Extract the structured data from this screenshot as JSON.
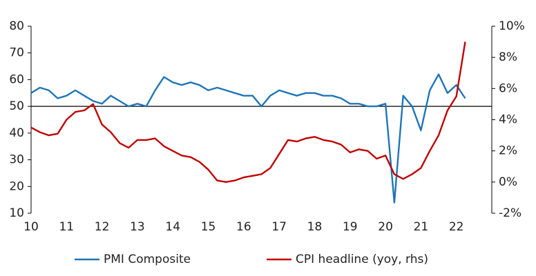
{
  "chart_data": {
    "type": "line",
    "x": [
      10,
      10.25,
      10.5,
      10.75,
      11,
      11.25,
      11.5,
      11.75,
      12,
      12.25,
      12.5,
      12.75,
      13,
      13.25,
      13.5,
      13.75,
      14,
      14.25,
      14.5,
      14.75,
      15,
      15.25,
      15.5,
      15.75,
      16,
      16.25,
      16.5,
      16.75,
      17,
      17.25,
      17.5,
      17.75,
      18,
      18.25,
      18.5,
      18.75,
      19,
      19.25,
      19.5,
      19.75,
      20,
      20.25,
      20.5,
      20.75,
      21,
      21.25,
      21.5,
      21.75,
      22,
      22.25
    ],
    "series": [
      {
        "name": "PMI Composite",
        "color": "#1f74b8",
        "values": [
          55,
          57,
          56,
          53,
          54,
          56,
          54,
          52,
          51,
          54,
          52,
          50,
          51,
          50,
          56,
          61,
          59,
          58,
          59,
          58,
          56,
          57,
          56,
          55,
          54,
          54,
          50,
          54,
          56,
          55,
          54,
          55,
          55,
          54,
          54,
          53,
          51,
          51,
          50,
          50,
          51,
          14,
          54,
          50,
          41,
          56,
          62,
          55,
          58,
          53
        ]
      },
      {
        "name": "CPI headline (yoy, rhs)",
        "color": "#c00000",
        "axis": "y2",
        "values": [
          3.5,
          3.2,
          3.0,
          3.1,
          4.0,
          4.5,
          4.6,
          5.0,
          3.7,
          3.2,
          2.5,
          2.2,
          2.7,
          2.7,
          2.8,
          2.3,
          2.0,
          1.7,
          1.6,
          1.3,
          0.8,
          0.1,
          0.0,
          0.1,
          0.3,
          0.4,
          0.5,
          0.9,
          1.8,
          2.7,
          2.6,
          2.8,
          2.9,
          2.7,
          2.6,
          2.4,
          1.9,
          2.1,
          2.0,
          1.5,
          1.7,
          0.5,
          0.2,
          0.5,
          0.9,
          2.0,
          3.0,
          4.6,
          5.5,
          9.0
        ]
      }
    ],
    "xlim": [
      10,
      23
    ],
    "xticks": [
      10,
      11,
      12,
      13,
      14,
      15,
      16,
      17,
      18,
      19,
      20,
      21,
      22
    ],
    "ylim": [
      10,
      80
    ],
    "yticks": [
      10,
      20,
      30,
      40,
      50,
      60,
      70,
      80
    ],
    "y2lim": [
      -2,
      10
    ],
    "y2ticks": [
      {
        "value": -2,
        "label": "-2%"
      },
      {
        "value": 0,
        "label": "0%"
      },
      {
        "value": 2,
        "label": "2%"
      },
      {
        "value": 4,
        "label": "4%"
      },
      {
        "value": 6,
        "label": "6%"
      },
      {
        "value": 8,
        "label": "8%"
      },
      {
        "value": 10,
        "label": "10%"
      }
    ],
    "hline": 50,
    "legend": "bottom"
  }
}
